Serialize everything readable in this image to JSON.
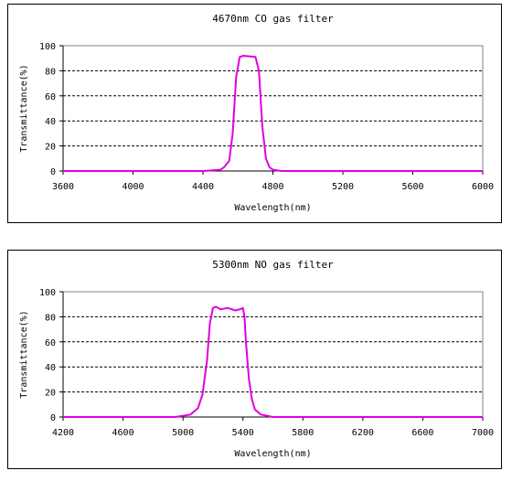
{
  "chart_data": [
    {
      "type": "line",
      "title": "4670nm CO gas filter",
      "xlabel": "Wavelength(nm)",
      "ylabel": "Transmittance(%)",
      "xlim": [
        3600,
        6000
      ],
      "ylim": [
        0,
        100
      ],
      "xticks": [
        3600,
        4000,
        4400,
        4800,
        5200,
        5600,
        6000
      ],
      "yticks": [
        0,
        20,
        40,
        60,
        80,
        100
      ],
      "grid": "horizontal dashed",
      "color": "#e000e0",
      "series": [
        {
          "x": [
            3600,
            4000,
            4400,
            4500,
            4520,
            4550,
            4570,
            4590,
            4610,
            4630,
            4700,
            4720,
            4740,
            4760,
            4780,
            4800,
            4850,
            5200,
            6000
          ],
          "y": [
            0,
            0,
            0,
            1,
            3,
            8,
            30,
            75,
            91,
            92,
            91,
            80,
            35,
            10,
            3,
            1,
            0,
            0,
            0
          ]
        }
      ]
    },
    {
      "type": "line",
      "title": "5300nm NO gas filter",
      "xlabel": "Wavelength(nm)",
      "ylabel": "Transmittance(%)",
      "xlim": [
        4200,
        7000
      ],
      "ylim": [
        0,
        100
      ],
      "xticks": [
        4200,
        4600,
        5000,
        5400,
        5800,
        6200,
        6600,
        7000
      ],
      "yticks": [
        0,
        20,
        40,
        60,
        80,
        100
      ],
      "grid": "horizontal dashed",
      "color": "#e000e0",
      "series": [
        {
          "x": [
            4200,
            4600,
            4950,
            5050,
            5100,
            5130,
            5160,
            5180,
            5200,
            5220,
            5250,
            5300,
            5350,
            5380,
            5400,
            5410,
            5420,
            5440,
            5460,
            5480,
            5520,
            5560,
            5600,
            7000
          ],
          "y": [
            0,
            0,
            0,
            2,
            7,
            18,
            45,
            75,
            87,
            88,
            86,
            87,
            85,
            86,
            87,
            80,
            60,
            30,
            14,
            6,
            2,
            1,
            0,
            0
          ]
        }
      ]
    }
  ]
}
